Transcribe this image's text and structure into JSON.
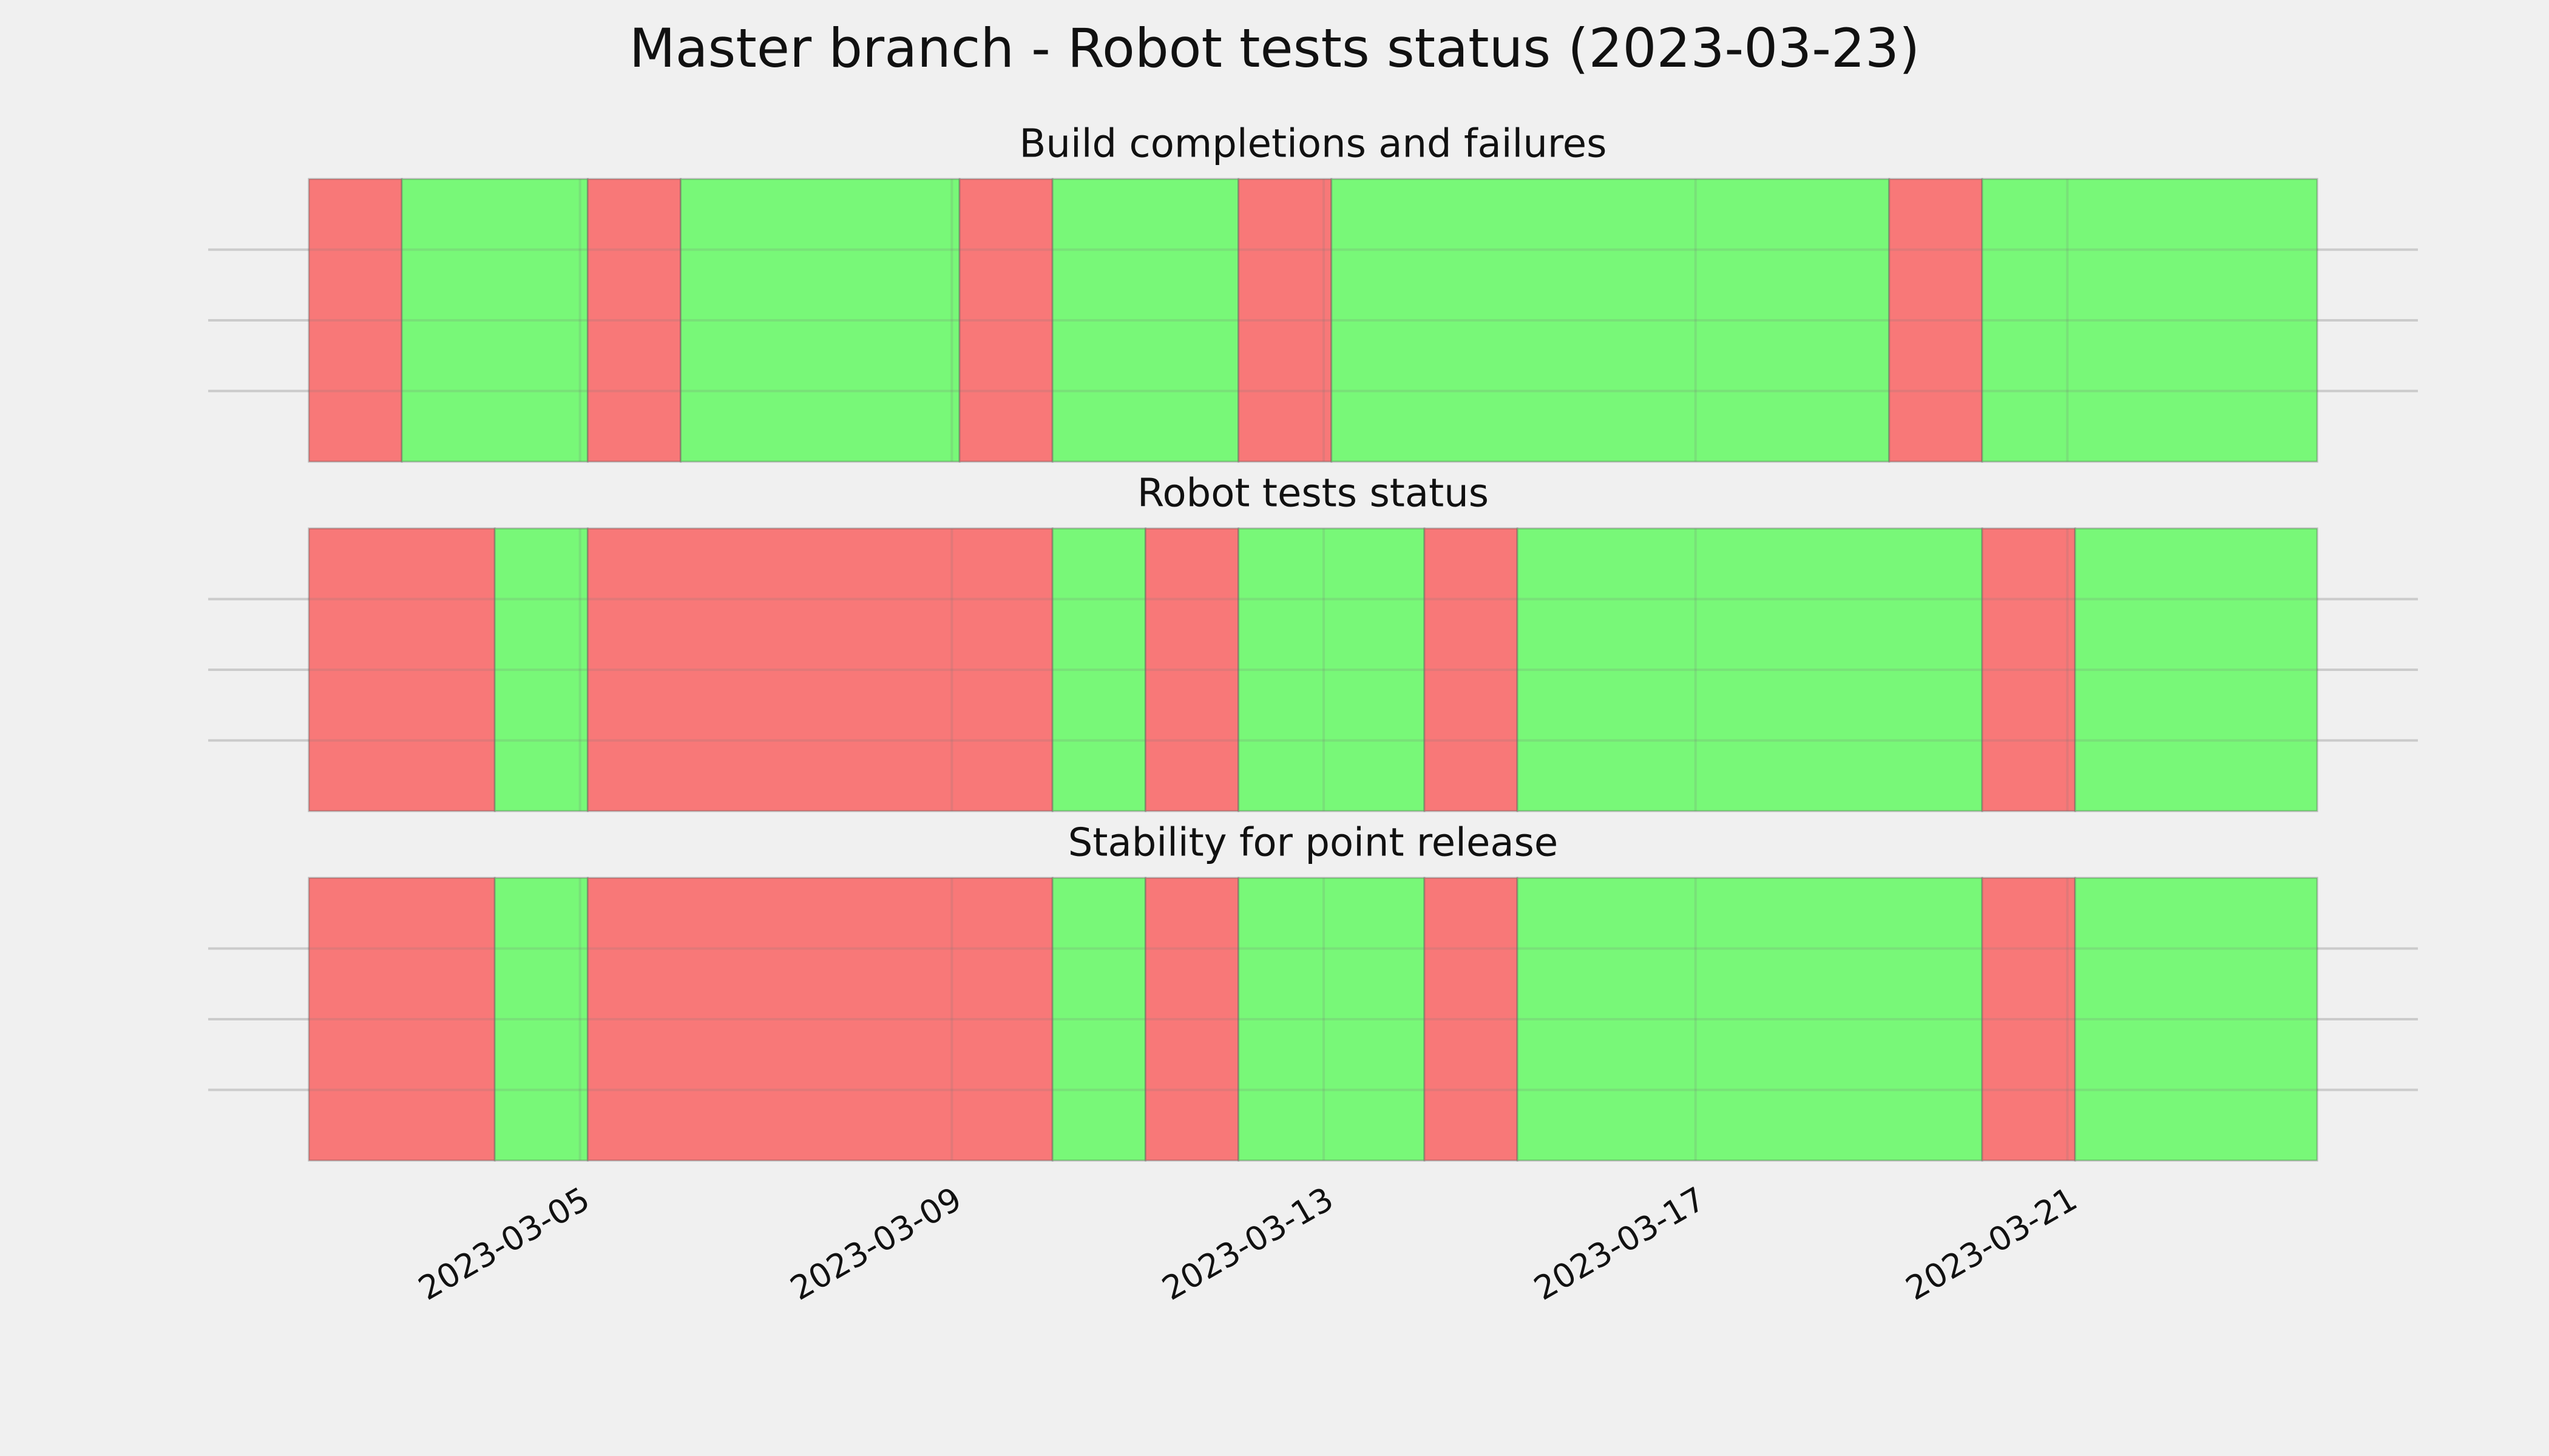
{
  "title": "Master branch - Robot tests status (2023-03-23)",
  "chart_data": [
    {
      "type": "timeline",
      "title": "Build completions and failures",
      "x": [
        "2023-03-02T02:00",
        "2023-03-03T02:00",
        "2023-03-05T02:00",
        "2023-03-06T02:00",
        "2023-03-09T02:00",
        "2023-03-10T02:00",
        "2023-03-12T02:00",
        "2023-03-13T02:00",
        "2023-03-19T02:00",
        "2023-03-20T02:00",
        "2023-03-23T16:30"
      ],
      "colors": [
        "#f87878",
        "#78f878",
        "#f87878",
        "#78f878",
        "#f87878",
        "#78f878",
        "#f87878",
        "#78f878",
        "#f87878",
        "#78f878"
      ],
      "xlim": [
        "2023-03-01T00:00",
        "2023-03-24T18:30"
      ],
      "xticks": [
        "2023-03-05",
        "2023-03-09",
        "2023-03-13",
        "2023-03-17",
        "2023-03-21"
      ],
      "ylim": [
        0,
        1
      ],
      "yticks": [
        0.25,
        0.5,
        0.75
      ],
      "grid": true
    },
    {
      "type": "timeline",
      "title": "Robot tests status",
      "x": [
        "2023-03-02T02:00",
        "2023-03-04T02:00",
        "2023-03-05T02:00",
        "2023-03-10T02:00",
        "2023-03-11T02:00",
        "2023-03-12T02:00",
        "2023-03-14T02:00",
        "2023-03-15T02:00",
        "2023-03-20T02:00",
        "2023-03-21T02:00",
        "2023-03-23T16:30"
      ],
      "colors": [
        "#f87878",
        "#78f878",
        "#f87878",
        "#78f878",
        "#f87878",
        "#78f878",
        "#f87878",
        "#78f878",
        "#f87878",
        "#78f878"
      ],
      "xlim": [
        "2023-03-01T00:00",
        "2023-03-24T18:30"
      ],
      "xticks": [
        "2023-03-05",
        "2023-03-09",
        "2023-03-13",
        "2023-03-17",
        "2023-03-21"
      ],
      "ylim": [
        0,
        1
      ],
      "yticks": [
        0.25,
        0.5,
        0.75
      ],
      "grid": true
    },
    {
      "type": "timeline",
      "title": "Stability for point release",
      "x": [
        "2023-03-02T02:00",
        "2023-03-04T02:00",
        "2023-03-05T02:00",
        "2023-03-10T02:00",
        "2023-03-11T02:00",
        "2023-03-12T02:00",
        "2023-03-14T02:00",
        "2023-03-15T02:00",
        "2023-03-20T02:00",
        "2023-03-21T02:00",
        "2023-03-23T16:30"
      ],
      "colors": [
        "#f87878",
        "#78f878",
        "#f87878",
        "#78f878",
        "#f87878",
        "#78f878",
        "#f87878",
        "#78f878",
        "#f87878",
        "#78f878"
      ],
      "xlim": [
        "2023-03-01T00:00",
        "2023-03-24T18:30"
      ],
      "xticks": [
        "2023-03-05",
        "2023-03-09",
        "2023-03-13",
        "2023-03-17",
        "2023-03-21"
      ],
      "ylim": [
        0,
        1
      ],
      "yticks": [
        0.25,
        0.5,
        0.75
      ],
      "grid": true
    }
  ]
}
